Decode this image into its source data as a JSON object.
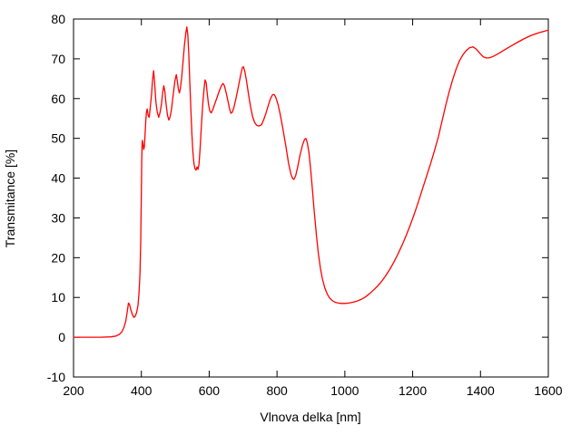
{
  "window": {
    "background": "#ffffff"
  },
  "chart_data": {
    "type": "line",
    "title": "",
    "xlabel": "Vlnova delka [nm]",
    "ylabel": "Transmitance [%]",
    "xlim": [
      200,
      1600
    ],
    "ylim": [
      -10,
      80
    ],
    "x_ticks": [
      200,
      400,
      600,
      800,
      1000,
      1200,
      1400,
      1600
    ],
    "y_ticks": [
      -10,
      0,
      10,
      20,
      30,
      40,
      50,
      60,
      70,
      80
    ],
    "grid": false,
    "legend_position": "none",
    "line_color": "#ff0000",
    "axis_color": "#000000",
    "background": "#ffffff",
    "series": [
      {
        "points": [
          [
            200,
            0
          ],
          [
            240,
            0
          ],
          [
            280,
            0
          ],
          [
            310,
            0.1
          ],
          [
            325,
            0.3
          ],
          [
            335,
            0.7
          ],
          [
            342,
            1.3
          ],
          [
            348,
            2.3
          ],
          [
            354,
            4.0
          ],
          [
            359,
            6.8
          ],
          [
            362,
            8.6
          ],
          [
            365,
            8.3
          ],
          [
            369,
            6.9
          ],
          [
            374,
            5.6
          ],
          [
            378,
            5.0
          ],
          [
            382,
            5.3
          ],
          [
            386,
            6.2
          ],
          [
            390,
            8.0
          ],
          [
            393,
            11.0
          ],
          [
            396,
            16.0
          ],
          [
            398,
            24.0
          ],
          [
            400,
            36.0
          ],
          [
            401,
            44.0
          ],
          [
            402,
            48.5
          ],
          [
            403,
            49.5
          ],
          [
            405,
            48.4
          ],
          [
            407,
            47.2
          ],
          [
            409,
            48.0
          ],
          [
            411,
            51.0
          ],
          [
            413,
            54.5
          ],
          [
            415,
            56.5
          ],
          [
            417,
            57.4
          ],
          [
            420,
            55.8
          ],
          [
            423,
            55.3
          ],
          [
            426,
            57.5
          ],
          [
            430,
            61.0
          ],
          [
            433,
            64.5
          ],
          [
            436,
            67.0
          ],
          [
            439,
            64.0
          ],
          [
            443,
            59.0
          ],
          [
            447,
            56.5
          ],
          [
            451,
            55.3
          ],
          [
            455,
            56.5
          ],
          [
            459,
            58.5
          ],
          [
            463,
            61.5
          ],
          [
            466,
            63.2
          ],
          [
            469,
            62.0
          ],
          [
            473,
            58.5
          ],
          [
            477,
            55.8
          ],
          [
            481,
            54.6
          ],
          [
            485,
            55.5
          ],
          [
            489,
            57.5
          ],
          [
            494,
            61.0
          ],
          [
            499,
            64.5
          ],
          [
            503,
            66.0
          ],
          [
            506,
            64.5
          ],
          [
            509,
            62.5
          ],
          [
            512,
            61.4
          ],
          [
            515,
            62.5
          ],
          [
            519,
            65.5
          ],
          [
            523,
            69.5
          ],
          [
            527,
            73.5
          ],
          [
            531,
            76.5
          ],
          [
            534,
            78.0
          ],
          [
            537,
            76.0
          ],
          [
            540,
            71.0
          ],
          [
            543,
            64.0
          ],
          [
            546,
            57.0
          ],
          [
            549,
            51.0
          ],
          [
            552,
            46.5
          ],
          [
            555,
            43.8
          ],
          [
            558,
            42.4
          ],
          [
            561,
            42.0
          ],
          [
            564,
            42.8
          ],
          [
            567,
            42.2
          ],
          [
            570,
            43.5
          ],
          [
            573,
            47.0
          ],
          [
            577,
            53.0
          ],
          [
            581,
            58.5
          ],
          [
            585,
            62.5
          ],
          [
            588,
            64.7
          ],
          [
            591,
            64.0
          ],
          [
            594,
            61.5
          ],
          [
            598,
            58.5
          ],
          [
            602,
            56.8
          ],
          [
            606,
            56.4
          ],
          [
            611,
            57.3
          ],
          [
            617,
            58.8
          ],
          [
            624,
            60.5
          ],
          [
            631,
            62.2
          ],
          [
            637,
            63.4
          ],
          [
            641,
            63.8
          ],
          [
            645,
            63.2
          ],
          [
            650,
            61.5
          ],
          [
            655,
            59.5
          ],
          [
            660,
            57.5
          ],
          [
            664,
            56.3
          ],
          [
            668,
            56.5
          ],
          [
            673,
            57.8
          ],
          [
            679,
            60.0
          ],
          [
            686,
            63.0
          ],
          [
            693,
            66.0
          ],
          [
            698,
            67.8
          ],
          [
            701,
            68.0
          ],
          [
            705,
            66.8
          ],
          [
            710,
            64.5
          ],
          [
            716,
            61.0
          ],
          [
            722,
            58.0
          ],
          [
            728,
            55.5
          ],
          [
            734,
            54.0
          ],
          [
            740,
            53.3
          ],
          [
            747,
            53.1
          ],
          [
            754,
            53.4
          ],
          [
            760,
            54.5
          ],
          [
            767,
            56.2
          ],
          [
            774,
            58.2
          ],
          [
            781,
            60.0
          ],
          [
            787,
            61.0
          ],
          [
            792,
            61.0
          ],
          [
            797,
            60.2
          ],
          [
            803,
            58.5
          ],
          [
            810,
            55.8
          ],
          [
            818,
            52.0
          ],
          [
            826,
            48.0
          ],
          [
            834,
            43.8
          ],
          [
            841,
            41.0
          ],
          [
            846,
            39.9
          ],
          [
            850,
            39.7
          ],
          [
            855,
            40.6
          ],
          [
            861,
            42.8
          ],
          [
            868,
            45.8
          ],
          [
            875,
            48.3
          ],
          [
            881,
            49.7
          ],
          [
            885,
            50.0
          ],
          [
            889,
            49.0
          ],
          [
            894,
            46.5
          ],
          [
            899,
            42.5
          ],
          [
            904,
            37.5
          ],
          [
            910,
            31.5
          ],
          [
            916,
            25.8
          ],
          [
            922,
            21.0
          ],
          [
            928,
            17.3
          ],
          [
            934,
            14.6
          ],
          [
            941,
            12.4
          ],
          [
            948,
            10.9
          ],
          [
            955,
            9.9
          ],
          [
            963,
            9.2
          ],
          [
            971,
            8.8
          ],
          [
            980,
            8.6
          ],
          [
            990,
            8.5
          ],
          [
            1000,
            8.5
          ],
          [
            1012,
            8.6
          ],
          [
            1024,
            8.8
          ],
          [
            1036,
            9.1
          ],
          [
            1048,
            9.5
          ],
          [
            1060,
            10.1
          ],
          [
            1072,
            10.9
          ],
          [
            1084,
            11.8
          ],
          [
            1096,
            12.8
          ],
          [
            1108,
            14.0
          ],
          [
            1120,
            15.4
          ],
          [
            1132,
            17.0
          ],
          [
            1144,
            18.8
          ],
          [
            1156,
            20.8
          ],
          [
            1168,
            23.0
          ],
          [
            1180,
            25.4
          ],
          [
            1192,
            28.0
          ],
          [
            1204,
            30.8
          ],
          [
            1216,
            33.8
          ],
          [
            1228,
            37.0
          ],
          [
            1240,
            40.2
          ],
          [
            1252,
            43.4
          ],
          [
            1264,
            46.8
          ],
          [
            1276,
            50.5
          ],
          [
            1288,
            54.8
          ],
          [
            1298,
            58.5
          ],
          [
            1308,
            61.8
          ],
          [
            1318,
            64.8
          ],
          [
            1328,
            67.4
          ],
          [
            1338,
            69.5
          ],
          [
            1348,
            71.0
          ],
          [
            1358,
            72.1
          ],
          [
            1368,
            72.8
          ],
          [
            1378,
            73.0
          ],
          [
            1388,
            72.4
          ],
          [
            1398,
            71.4
          ],
          [
            1408,
            70.5
          ],
          [
            1418,
            70.2
          ],
          [
            1428,
            70.3
          ],
          [
            1440,
            70.7
          ],
          [
            1455,
            71.4
          ],
          [
            1470,
            72.2
          ],
          [
            1490,
            73.2
          ],
          [
            1510,
            74.2
          ],
          [
            1530,
            75.1
          ],
          [
            1550,
            75.9
          ],
          [
            1570,
            76.5
          ],
          [
            1590,
            77.0
          ],
          [
            1600,
            77.2
          ]
        ]
      }
    ]
  }
}
